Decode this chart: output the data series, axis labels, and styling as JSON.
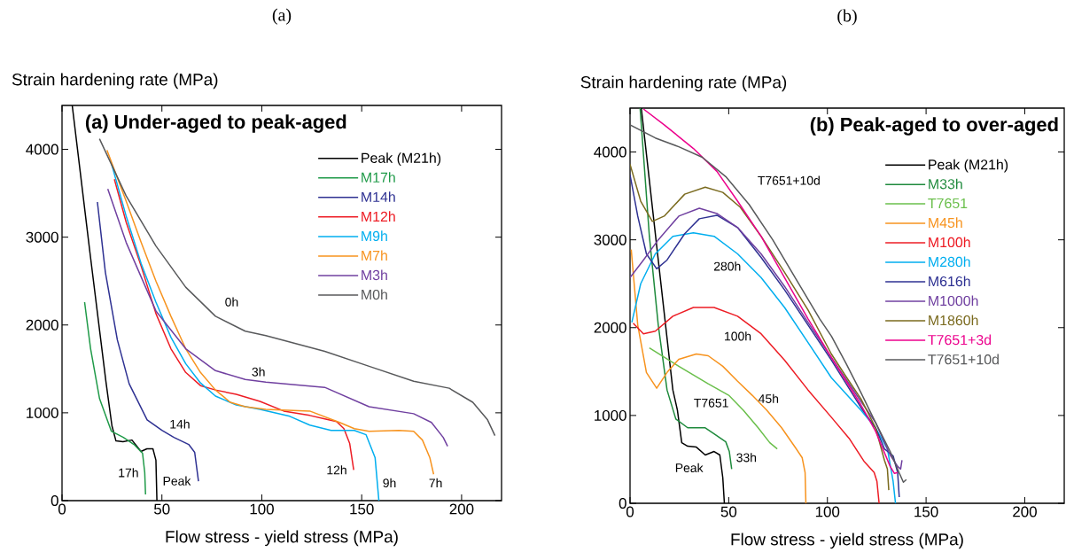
{
  "chart_data": [
    {
      "type": "line",
      "title": "(a) Under-aged to peak-aged",
      "xlabel": "Flow stress - yield stress (MPa)",
      "ylabel": "Strain hardening rate (MPa)",
      "xlim": [
        0,
        220
      ],
      "ylim": [
        0,
        4500
      ],
      "xticks": [
        0,
        50,
        100,
        150,
        200
      ],
      "yticks": [
        0,
        1000,
        2000,
        3000,
        4000
      ],
      "legend": "top right",
      "series": [
        {
          "name": "Peak (M21h)",
          "color": "#000000",
          "x": [
            5.1,
            14,
            22,
            25,
            27,
            30.5,
            35,
            39.5,
            42.5,
            45.5,
            47,
            47.5
          ],
          "values": [
            4500,
            2820,
            1350,
            850,
            680,
            670,
            690,
            560,
            590,
            590,
            460,
            0
          ]
        },
        {
          "name": "M17h",
          "color": "#1f9a48",
          "x": [
            11.3,
            14.3,
            18.8,
            24.7,
            30.7,
            36,
            40.3,
            41.4,
            41.8
          ],
          "values": [
            2260,
            1730,
            1160,
            790,
            720,
            640,
            540,
            320,
            70
          ]
        },
        {
          "name": "M14h",
          "color": "#2e3192",
          "x": [
            17.7,
            21.7,
            27.7,
            33.6,
            42.6,
            50,
            56,
            63.4,
            66.4,
            68.3
          ],
          "values": [
            3400,
            2600,
            1830,
            1330,
            920,
            800,
            720,
            640,
            550,
            220
          ]
        },
        {
          "name": "M12h",
          "color": "#ed1c24",
          "x": [
            26.2,
            32.1,
            39.6,
            47,
            54.5,
            61.9,
            69.3,
            76.8,
            87.2,
            99.1,
            111,
            124,
            131.5,
            137.4,
            141.1,
            144,
            146
          ],
          "values": [
            3660,
            3170,
            2670,
            2130,
            1730,
            1460,
            1310,
            1260,
            1210,
            1130,
            1020,
            970,
            930,
            900,
            820,
            650,
            350
          ]
        },
        {
          "name": "M9h",
          "color": "#00aeef",
          "x": [
            24.7,
            32.1,
            39.6,
            47,
            54.5,
            61.9,
            69.3,
            76.8,
            87.2,
            99.1,
            114,
            124,
            134.7,
            146.3,
            152.2,
            156.7,
            158.6
          ],
          "values": [
            3840,
            3240,
            2700,
            2260,
            1860,
            1560,
            1340,
            1190,
            1090,
            1040,
            960,
            860,
            800,
            800,
            750,
            490,
            0
          ]
        },
        {
          "name": "M7h",
          "color": "#f7931e",
          "x": [
            22.5,
            32.1,
            39.6,
            47,
            54.5,
            61.9,
            69.3,
            76.8,
            84.2,
            91.7,
            102,
            124,
            138.9,
            146.3,
            153.7,
            168.6,
            176,
            180.4,
            184.1,
            186
          ],
          "values": [
            3990,
            3410,
            2940,
            2500,
            2100,
            1730,
            1460,
            1260,
            1120,
            1070,
            1040,
            1020,
            890,
            820,
            790,
            800,
            790,
            690,
            490,
            300
          ]
        },
        {
          "name": "M3h",
          "color": "#7040a0",
          "x": [
            22.9,
            32.1,
            47,
            61.9,
            76.8,
            91.7,
            102,
            131.5,
            153.7,
            176,
            184.9,
            190.8,
            193
          ],
          "values": [
            3550,
            2940,
            2160,
            1730,
            1480,
            1380,
            1350,
            1290,
            1070,
            990,
            890,
            720,
            620
          ]
        },
        {
          "name": "M0h",
          "color": "#58595b",
          "x": [
            18.75,
            32.1,
            47,
            61.9,
            76.8,
            91.7,
            102,
            131.5,
            153.7,
            176,
            193.8,
            205.6,
            213,
            216.7
          ],
          "values": [
            4120,
            3470,
            2900,
            2430,
            2100,
            1930,
            1880,
            1700,
            1530,
            1360,
            1280,
            1120,
            920,
            740
          ]
        }
      ],
      "annotations": [
        "(a)",
        "0h",
        "3h",
        "14h",
        "17h",
        "Peak",
        "12h",
        "9h",
        "7h"
      ]
    },
    {
      "type": "line",
      "title": "(b) Peak-aged to over-aged",
      "xlabel": "Flow stress - yield stress (MPa)",
      "ylabel": "Strain hardening rate (MPa)",
      "xlim": [
        0,
        220
      ],
      "ylim": [
        0,
        4500
      ],
      "xticks": [
        0,
        50,
        100,
        150,
        200
      ],
      "yticks": [
        0,
        1000,
        2000,
        3000,
        4000
      ],
      "legend": "top right",
      "series": [
        {
          "name": "Peak (M21h)",
          "color": "#000000",
          "x": [
            5.7,
            14.3,
            21.7,
            24,
            26.2,
            29.2,
            33.6,
            38.1,
            42.6,
            45.5,
            47,
            47.8
          ],
          "values": [
            4500,
            2770,
            1290,
            1060,
            690,
            650,
            640,
            550,
            590,
            550,
            290,
            0
          ]
        },
        {
          "name": "M33h",
          "color": "#1e8a3c",
          "x": [
            5.1,
            9.8,
            14.3,
            18.75,
            23.2,
            29.2,
            38.1,
            42.6,
            48.5,
            50.3,
            51.5
          ],
          "values": [
            4500,
            3040,
            2030,
            1290,
            960,
            860,
            860,
            790,
            700,
            590,
            390
          ]
        },
        {
          "name": "T7651",
          "color": "#6abf4b",
          "x": [
            9.8,
            24.7,
            39.6,
            50,
            57.4,
            64.9,
            70.8,
            74.6
          ],
          "values": [
            1770,
            1560,
            1360,
            1230,
            1060,
            860,
            690,
            620
          ]
        },
        {
          "name": "M45h",
          "color": "#f7931e",
          "x": [
            0.6,
            3.9,
            8.3,
            13.5,
            18.75,
            24.7,
            33.6,
            39.6,
            47,
            54.5,
            61.9,
            69.3,
            76.8,
            84.2,
            87.2,
            88.7,
            89.1
          ],
          "values": [
            2890,
            2030,
            1490,
            1310,
            1490,
            1640,
            1700,
            1680,
            1560,
            1390,
            1230,
            1060,
            860,
            620,
            520,
            350,
            0
          ]
        },
        {
          "name": "M100h",
          "color": "#ed1c24",
          "x": [
            1.6,
            6.8,
            12.8,
            21.7,
            32.1,
            42.6,
            54.5,
            66.4,
            78.3,
            90.2,
            102,
            111,
            118.5,
            123.7,
            125.1,
            126.2
          ],
          "values": [
            2050,
            1930,
            1960,
            2130,
            2230,
            2230,
            2130,
            1930,
            1630,
            1290,
            980,
            740,
            480,
            350,
            250,
            0
          ]
        },
        {
          "name": "M280h",
          "color": "#00aeef",
          "x": [
            0.9,
            5.4,
            12.8,
            21.7,
            32.1,
            42.6,
            54.5,
            66.4,
            78.3,
            90.2,
            102,
            117,
            124.4,
            130.4,
            133.3,
            134.5
          ],
          "values": [
            2060,
            2500,
            2840,
            3040,
            3080,
            3040,
            2840,
            2570,
            2230,
            1830,
            1430,
            1060,
            860,
            620,
            250,
            0
          ]
        },
        {
          "name": "M616h",
          "color": "#2e3192",
          "x": [
            0,
            3.9,
            8.3,
            13.5,
            18.75,
            27.7,
            35.1,
            44,
            54.5,
            66.4,
            78.3,
            90.2,
            102,
            109.5,
            117,
            124.4,
            128.9,
            133.3,
            135.6,
            136.4
          ],
          "values": [
            3740,
            3270,
            2840,
            2670,
            2770,
            3070,
            3240,
            3280,
            3140,
            2800,
            2430,
            2030,
            1630,
            1360,
            1090,
            860,
            620,
            540,
            350,
            70
          ]
        },
        {
          "name": "M1000h",
          "color": "#7040a0",
          "x": [
            0,
            6.8,
            14.3,
            24.7,
            35.1,
            44,
            54.5,
            66.4,
            78.3,
            90.2,
            102,
            109.5,
            117,
            124.4,
            131.8,
            135.6,
            137.1,
            137.8
          ],
          "values": [
            2570,
            2770,
            3000,
            3270,
            3360,
            3300,
            3140,
            2840,
            2470,
            2060,
            1660,
            1410,
            1160,
            920,
            550,
            420,
            390,
            490
          ]
        },
        {
          "name": "M1860h",
          "color": "#7a6a1e",
          "x": [
            0,
            5.4,
            11.3,
            17.3,
            27.7,
            38.1,
            47,
            55.9,
            66.4,
            78.3,
            90.2,
            102,
            109.5,
            117,
            124.4,
            128.9,
            130.4,
            131.1
          ],
          "values": [
            3860,
            3440,
            3210,
            3270,
            3520,
            3600,
            3540,
            3370,
            3040,
            2630,
            2200,
            1700,
            1440,
            1190,
            860,
            490,
            390,
            150
          ]
        },
        {
          "name": "T7651+3d",
          "color": "#ec008c",
          "x": [
            6.8,
            17.3,
            32.1,
            44,
            54.5,
            66.4,
            78.3,
            90.2,
            102,
            109.5,
            117,
            124.4,
            131.8,
            134,
            135.6
          ],
          "values": [
            4490,
            4310,
            4040,
            3780,
            3440,
            3040,
            2570,
            2100,
            1660,
            1390,
            1120,
            820,
            420,
            340,
            350
          ]
        },
        {
          "name": "T7651+10d",
          "color": "#58595b",
          "x": [
            0,
            12.8,
            24.7,
            36.6,
            48.5,
            60.4,
            72.3,
            84.2,
            96.1,
            102.1,
            109.5,
            117,
            124.4,
            131.8,
            136.3,
            138.5,
            140
          ],
          "values": [
            4310,
            4160,
            4060,
            3940,
            3720,
            3400,
            3000,
            2550,
            2100,
            1900,
            1590,
            1260,
            920,
            590,
            350,
            240,
            270
          ]
        }
      ],
      "annotations": [
        "(b)",
        "T7651+10d",
        "280h",
        "100h",
        "45h",
        "T7651",
        "33h",
        "Peak"
      ]
    }
  ]
}
